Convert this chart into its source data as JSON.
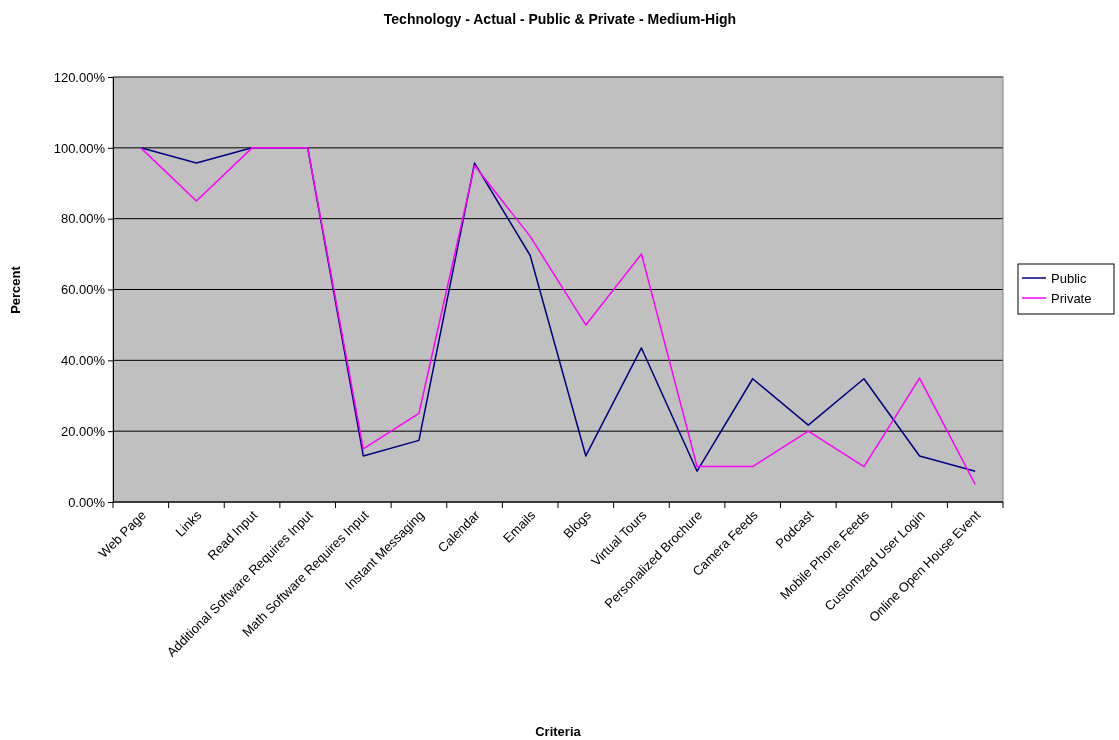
{
  "chart_data": {
    "type": "line",
    "title": "Technology - Actual - Public & Private - Medium-High",
    "xlabel": "Criteria",
    "ylabel": "Percent",
    "categories": [
      "Web Page",
      "Links",
      "Read Input",
      "Additional Software Requires Input",
      "Math Software Requires Input",
      "Instant Messaging",
      "Calendar",
      "Emails",
      "Blogs",
      "Virtual Tours",
      "Personalized Brochure",
      "Camera Feeds",
      "Podcast",
      "Mobile Phone Feeds",
      "Customized User Login",
      "Online Open House Event"
    ],
    "series": [
      {
        "name": "Public",
        "color": "#000080",
        "values": [
          100,
          95.7,
          100,
          100,
          13,
          17.4,
          95.7,
          69.6,
          13,
          43.5,
          8.7,
          34.8,
          21.7,
          34.8,
          13,
          8.7
        ]
      },
      {
        "name": "Private",
        "color": "#ff00ff",
        "values": [
          100,
          85,
          100,
          100,
          15,
          25,
          95,
          75,
          50,
          70,
          10,
          10,
          20,
          10,
          35,
          5
        ]
      }
    ],
    "ylim": [
      0,
      120
    ],
    "yticks": [
      {
        "value": 0,
        "label": "0.00%"
      },
      {
        "value": 20,
        "label": "20.00%"
      },
      {
        "value": 40,
        "label": "40.00%"
      },
      {
        "value": 60,
        "label": "60.00%"
      },
      {
        "value": 80,
        "label": "80.00%"
      },
      {
        "value": 100,
        "label": "100.00%"
      },
      {
        "value": 120,
        "label": "120.00%"
      }
    ],
    "grid": "y",
    "legend": "right",
    "marker": "none",
    "line_style": "solid"
  }
}
